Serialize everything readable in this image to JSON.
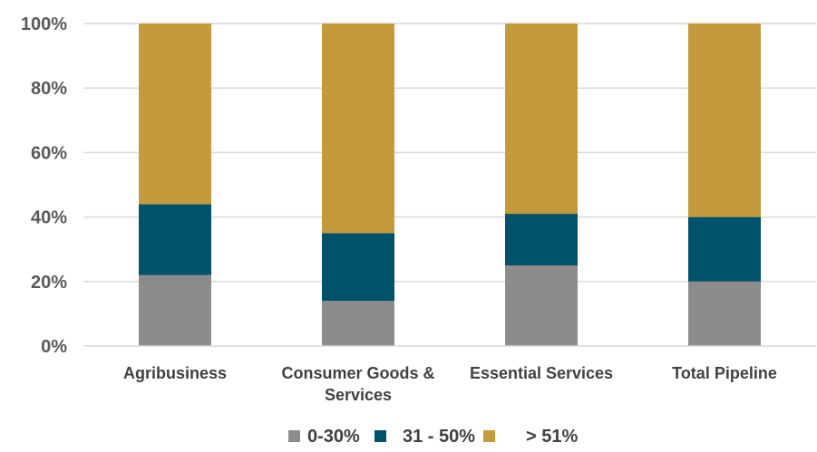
{
  "chart_data": {
    "type": "bar",
    "stacked": true,
    "categories": [
      [
        "Agribusiness"
      ],
      [
        "Consumer Goods &",
        "Services"
      ],
      [
        "Essential Services"
      ],
      [
        "Total Pipeline"
      ]
    ],
    "series": [
      {
        "name": "0-30%",
        "color": "#8c8c8c",
        "values": [
          22,
          14,
          25,
          20
        ]
      },
      {
        "name": "31 - 50%",
        "color": "#00516a",
        "values": [
          22,
          21,
          16,
          20
        ]
      },
      {
        "name": "> 51%",
        "color": "#c49b3c",
        "values": [
          56,
          65,
          59,
          60
        ]
      }
    ],
    "ylim": [
      0,
      100
    ],
    "yticks": [
      "0%",
      "20%",
      "40%",
      "60%",
      "80%",
      "100%"
    ],
    "title": "",
    "xlabel": "",
    "ylabel": "",
    "grid": true,
    "legend": "bottom"
  }
}
